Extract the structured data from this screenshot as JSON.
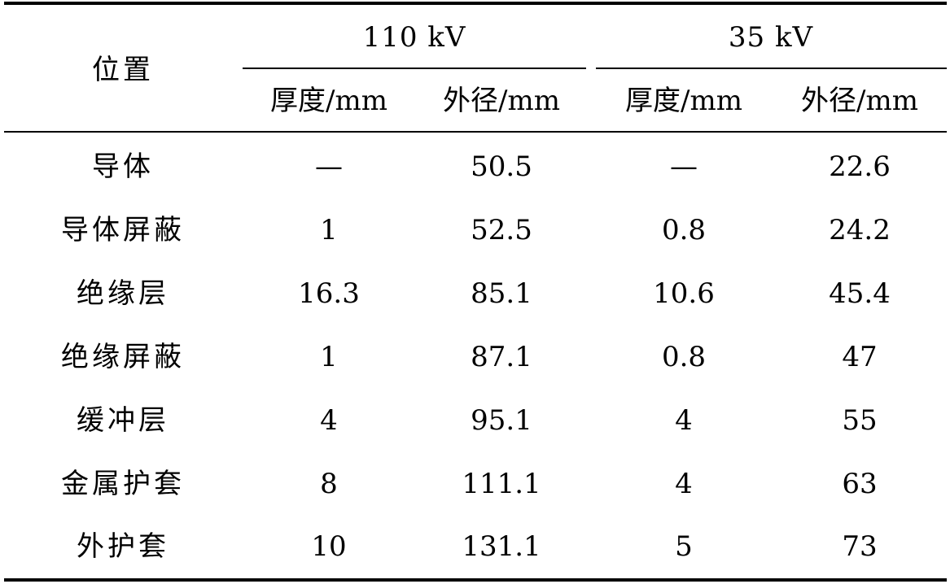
{
  "table": {
    "position_header": "位置",
    "groups": [
      {
        "label": "110 kV",
        "thickness_label": "厚度/mm",
        "diameter_label": "外径/mm"
      },
      {
        "label": "35 kV",
        "thickness_label": "厚度/mm",
        "diameter_label": "外径/mm"
      }
    ],
    "rows": [
      {
        "position": "导体",
        "t110": "—",
        "d110": "50.5",
        "t35": "—",
        "d35": "22.6"
      },
      {
        "position": "导体屏蔽",
        "t110": "1",
        "d110": "52.5",
        "t35": "0.8",
        "d35": "24.2"
      },
      {
        "position": "绝缘层",
        "t110": "16.3",
        "d110": "85.1",
        "t35": "10.6",
        "d35": "45.4"
      },
      {
        "position": "绝缘屏蔽",
        "t110": "1",
        "d110": "87.1",
        "t35": "0.8",
        "d35": "47"
      },
      {
        "position": "缓冲层",
        "t110": "4",
        "d110": "95.1",
        "t35": "4",
        "d35": "55"
      },
      {
        "position": "金属护套",
        "t110": "8",
        "d110": "111.1",
        "t35": "4",
        "d35": "63"
      },
      {
        "position": "外护套",
        "t110": "10",
        "d110": "131.1",
        "t35": "5",
        "d35": "73"
      }
    ]
  }
}
